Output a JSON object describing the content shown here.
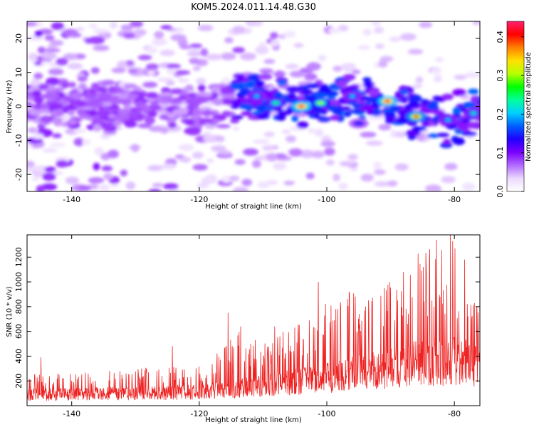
{
  "title": "KOM5.2024.011.14.48.G30",
  "chart_data": [
    {
      "type": "heatmap",
      "xlabel": "Height of straight line (km)",
      "ylabel": "Frequency (Hz)",
      "xlim": [
        -147,
        -76
      ],
      "ylim": [
        -25,
        25
      ],
      "x_ticks": [
        -140,
        -120,
        -100,
        -80
      ],
      "x_tick_labels": [
        "-140",
        "-120",
        "-100",
        "-80"
      ],
      "y_ticks": [
        -20,
        -10,
        0,
        10,
        20
      ],
      "y_tick_labels": [
        "-20",
        "-10",
        "0",
        "10",
        "20"
      ],
      "colorbar": {
        "label": "Normalized spectral amplitude",
        "range": [
          0,
          0.44
        ],
        "ticks": [
          0.0,
          0.1,
          0.2,
          0.3,
          0.4
        ],
        "tick_labels": [
          "0.0",
          "0.1",
          "0.2",
          "0.3",
          "0.4"
        ],
        "colors": [
          "#ffffff",
          "#ecd9ff",
          "#b26bff",
          "#7a00ff",
          "#2000ff",
          "#0060ff",
          "#00d0ff",
          "#00ff9a",
          "#00ff00",
          "#b8ff00",
          "#ffe000",
          "#ff8000",
          "#ff0000",
          "#ff1f6e"
        ]
      },
      "ridge": [
        {
          "x": -147,
          "f": 1.5
        },
        {
          "x": -135,
          "f": 0.5
        },
        {
          "x": -125,
          "f": -0.5
        },
        {
          "x": -118,
          "f": -1
        },
        {
          "x": -112,
          "f": 2.5
        },
        {
          "x": -100,
          "f": 0.5
        },
        {
          "x": -95,
          "f": 2
        },
        {
          "x": -90,
          "f": 1
        },
        {
          "x": -85,
          "f": -3
        },
        {
          "x": -80,
          "f": -4
        },
        {
          "x": -76,
          "f": -2
        }
      ],
      "peaks": [
        {
          "x": -111,
          "f": 3,
          "amp": 0.2
        },
        {
          "x": -104,
          "f": 0,
          "amp": 0.44
        },
        {
          "x": -101,
          "f": 1,
          "amp": 0.3
        },
        {
          "x": -96,
          "f": 3,
          "amp": 0.2
        },
        {
          "x": -90.5,
          "f": 1.5,
          "amp": 0.44
        },
        {
          "x": -86,
          "f": -3,
          "amp": 0.4
        },
        {
          "x": -81,
          "f": -4,
          "amp": 0.2
        },
        {
          "x": -77,
          "f": -2,
          "amp": 0.22
        },
        {
          "x": -95,
          "f": -5,
          "amp": 0.15
        },
        {
          "x": -108,
          "f": 1,
          "amp": 0.25
        }
      ]
    },
    {
      "type": "line",
      "xlabel": "Height of straight line (km)",
      "ylabel": "SNR (10 * v/v)",
      "xlim": [
        -147,
        -76
      ],
      "ylim": [
        0,
        1380
      ],
      "x_ticks": [
        -140,
        -120,
        -100,
        -80
      ],
      "x_tick_labels": [
        "-140",
        "-120",
        "-100",
        "-80"
      ],
      "y_ticks": [
        200,
        400,
        600,
        800,
        1000,
        1200
      ],
      "y_tick_labels": [
        "200",
        "400",
        "600",
        "800",
        "1000",
        "1200"
      ],
      "series": [
        {
          "color": "#ee2222",
          "envelope": [
            {
              "x": -147,
              "base": 110,
              "peak": 260
            },
            {
              "x": -135,
              "base": 120,
              "peak": 280
            },
            {
              "x": -125,
              "base": 130,
              "peak": 320
            },
            {
              "x": -119,
              "base": 140,
              "peak": 330
            },
            {
              "x": -114,
              "base": 170,
              "peak": 600
            },
            {
              "x": -108,
              "base": 220,
              "peak": 550
            },
            {
              "x": -102,
              "base": 260,
              "peak": 800
            },
            {
              "x": -98,
              "base": 300,
              "peak": 900
            },
            {
              "x": -92,
              "base": 360,
              "peak": 950
            },
            {
              "x": -88,
              "base": 400,
              "peak": 1150
            },
            {
              "x": -83,
              "base": 450,
              "peak": 1330
            },
            {
              "x": -80,
              "base": 450,
              "peak": 1380
            },
            {
              "x": -76,
              "base": 400,
              "peak": 800
            }
          ],
          "spikes": [
            {
              "x": -144.8,
              "y": 390
            },
            {
              "x": -124.2,
              "y": 480
            },
            {
              "x": -115.5,
              "y": 750
            },
            {
              "x": -113.5,
              "y": 640
            },
            {
              "x": -108.2,
              "y": 640
            },
            {
              "x": -101.3,
              "y": 1000
            },
            {
              "x": -98.6,
              "y": 780
            },
            {
              "x": -96.5,
              "y": 920
            },
            {
              "x": -90.1,
              "y": 1000
            },
            {
              "x": -88.0,
              "y": 1080
            },
            {
              "x": -84.4,
              "y": 1140
            },
            {
              "x": -82.8,
              "y": 1340
            },
            {
              "x": -80.6,
              "y": 1380
            },
            {
              "x": -79.9,
              "y": 1270
            },
            {
              "x": -78.4,
              "y": 1180
            },
            {
              "x": -77.0,
              "y": 810
            }
          ]
        }
      ]
    }
  ]
}
